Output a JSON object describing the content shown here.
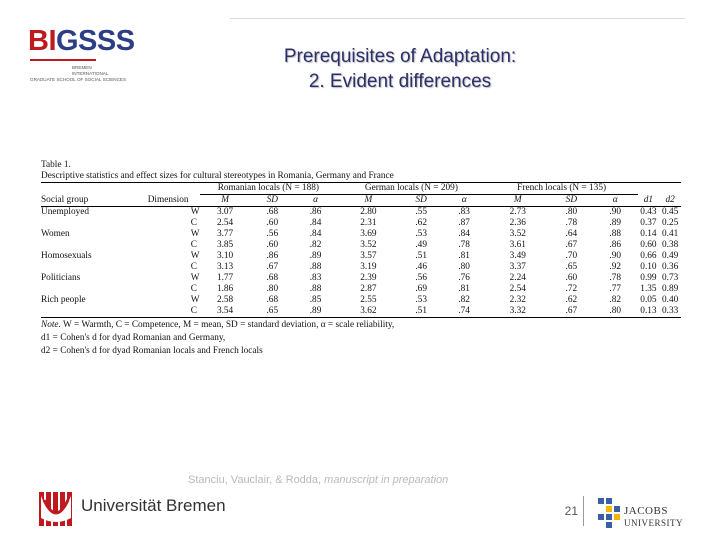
{
  "header": {
    "logo_bigsss_bi": "BI",
    "logo_bigsss_gsss": "GSSS",
    "logo_sub_lines": [
      "BREMEN",
      "INTERNATIONAL",
      "GRADUATE SCHOOL OF SOCIAL SCIENCES"
    ],
    "title_line1": "Prerequisites of Adaptation:",
    "title_line2": "2. Evident differences"
  },
  "table": {
    "label": "Table 1.",
    "caption": "Descriptive statistics and effect sizes for cultural stereotypes in Romania, Germany and France",
    "groups": [
      "Romanian locals (N = 188)",
      "German locals (N = 209)",
      "French locals (N = 135)"
    ],
    "col_social_group": "Social group",
    "col_dimension": "Dimension",
    "subheaders": [
      "M",
      "SD",
      "α",
      "M",
      "SD",
      "α",
      "M",
      "SD",
      "α",
      "d1",
      "d2"
    ],
    "rows": [
      {
        "group": "Unemployed",
        "dim": "W",
        "cells": [
          "3.07",
          ".68",
          ".86",
          "2.80",
          ".55",
          ".83",
          "2.73",
          ".80",
          ".90",
          "0.43",
          "0.45"
        ]
      },
      {
        "group": "",
        "dim": "C",
        "cells": [
          "2.54",
          ".60",
          ".84",
          "2.31",
          ".62",
          ".87",
          "2.36",
          ".78",
          ".89",
          "0.37",
          "0.25"
        ]
      },
      {
        "group": "Women",
        "dim": "W",
        "cells": [
          "3.77",
          ".56",
          ".84",
          "3.69",
          ".53",
          ".84",
          "3.52",
          ".64",
          ".88",
          "0.14",
          "0.41"
        ]
      },
      {
        "group": "",
        "dim": "C",
        "cells": [
          "3.85",
          ".60",
          ".82",
          "3.52",
          ".49",
          ".78",
          "3.61",
          ".67",
          ".86",
          "0.60",
          "0.38"
        ]
      },
      {
        "group": "Homosexuals",
        "dim": "W",
        "cells": [
          "3.10",
          ".86",
          ".89",
          "3.57",
          ".51",
          ".81",
          "3.49",
          ".70",
          ".90",
          "0.66",
          "0.49"
        ]
      },
      {
        "group": "",
        "dim": "C",
        "cells": [
          "3.13",
          ".67",
          ".88",
          "3.19",
          ".46",
          ".80",
          "3.37",
          ".65",
          ".92",
          "0.10",
          "0.36"
        ]
      },
      {
        "group": "Politicians",
        "dim": "W",
        "cells": [
          "1.77",
          ".68",
          ".83",
          "2.39",
          ".56",
          ".76",
          "2.24",
          ".60",
          ".78",
          "0.99",
          "0.73"
        ]
      },
      {
        "group": "",
        "dim": "C",
        "cells": [
          "1.86",
          ".80",
          ".88",
          "2.87",
          ".69",
          ".81",
          "2.54",
          ".72",
          ".77",
          "1.35",
          "0.89"
        ]
      },
      {
        "group": "Rich people",
        "dim": "W",
        "cells": [
          "2.58",
          ".68",
          ".85",
          "2.55",
          ".53",
          ".82",
          "2.32",
          ".62",
          ".82",
          "0.05",
          "0.40"
        ]
      },
      {
        "group": "",
        "dim": "C",
        "cells": [
          "3.54",
          ".65",
          ".89",
          "3.62",
          ".51",
          ".74",
          "3.32",
          ".67",
          ".80",
          "0.13",
          "0.33"
        ]
      }
    ],
    "note_line1_label": "Note.",
    "note_line1": " W = Warmth, C = Competence, M = mean, SD = standard deviation, α = scale reliability,",
    "note_line2": "d1 = Cohen's d for dyad Romanian and Germany,",
    "note_line3": "d2 = Cohen's d for dyad Romanian locals and French locals"
  },
  "footer": {
    "citation_authors": "Stanciu, Vauclair, & Rodda, ",
    "citation_italic": "manuscript in preparation",
    "uni_bremen": "Universität Bremen",
    "page_number": "21",
    "jacobs_line1": "JACOBS",
    "jacobs_line2": "UNIVERSITY"
  },
  "colors": {
    "title": "#2b2f6b",
    "bigsss_red": "#c0181f",
    "bigsss_blue": "#2b3e87",
    "bremen_red": "#c0181f",
    "jacobs_blue": "#3a5ea8",
    "jacobs_yellow": "#f2b705"
  }
}
